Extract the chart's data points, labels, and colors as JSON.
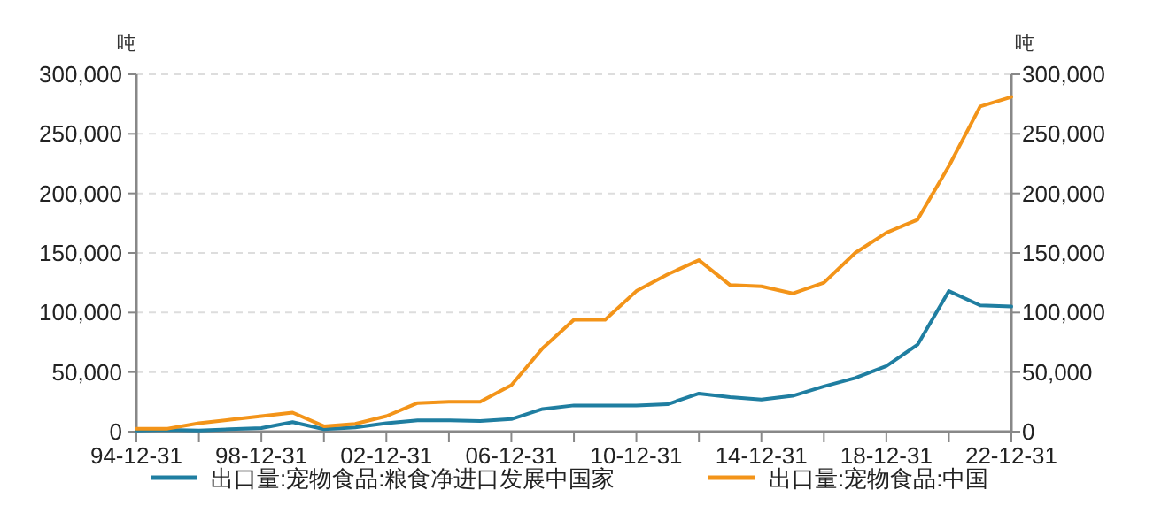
{
  "chart_data": {
    "type": "line",
    "ylabel": "吨",
    "y2label": "吨",
    "x": [
      "1994-12-31",
      "1995-12-31",
      "1996-12-31",
      "1997-12-31",
      "1998-12-31",
      "1999-12-31",
      "2000-12-31",
      "2001-12-31",
      "2002-12-31",
      "2003-12-31",
      "2004-12-31",
      "2005-12-31",
      "2006-12-31",
      "2007-12-31",
      "2008-12-31",
      "2009-12-31",
      "2010-12-31",
      "2011-12-31",
      "2012-12-31",
      "2013-12-31",
      "2014-12-31",
      "2015-12-31",
      "2016-12-31",
      "2017-12-31",
      "2018-12-31",
      "2019-12-31",
      "2020-12-31",
      "2021-12-31",
      "2022-12-31"
    ],
    "series": [
      {
        "name": "出口量:宠物食品:粮食净进口发展中国家",
        "color": "#1f7ea1",
        "values": [
          1000,
          1500,
          1000,
          2000,
          3000,
          8000,
          2000,
          3500,
          7000,
          9500,
          9500,
          9000,
          10500,
          19000,
          22000,
          22000,
          22000,
          23000,
          32000,
          29000,
          27000,
          30000,
          38000,
          45000,
          55000,
          73000,
          118000,
          106000,
          105000
        ]
      },
      {
        "name": "出口量:宠物食品:中国",
        "color": "#f39419",
        "values": [
          2500,
          2500,
          7000,
          10000,
          13000,
          16000,
          4500,
          6500,
          13000,
          24000,
          25000,
          25000,
          39000,
          70000,
          94000,
          94000,
          118000,
          132000,
          144000,
          123000,
          122000,
          116000,
          125000,
          150000,
          167000,
          178000,
          223000,
          273000,
          281000
        ]
      }
    ],
    "xlim": [
      "1994-12-31",
      "2022-12-31"
    ],
    "xticks": [
      {
        "value": "1994-12-31",
        "label": "94-12-31"
      },
      {
        "value": "1996-12-31",
        "label": null
      },
      {
        "value": "1998-12-31",
        "label": "98-12-31"
      },
      {
        "value": "2000-12-31",
        "label": null
      },
      {
        "value": "2002-12-31",
        "label": "02-12-31"
      },
      {
        "value": "2004-12-31",
        "label": null
      },
      {
        "value": "2006-12-31",
        "label": "06-12-31"
      },
      {
        "value": "2008-12-31",
        "label": null
      },
      {
        "value": "2010-12-31",
        "label": "10-12-31"
      },
      {
        "value": "2012-12-31",
        "label": null
      },
      {
        "value": "2014-12-31",
        "label": "14-12-31"
      },
      {
        "value": "2016-12-31",
        "label": null
      },
      {
        "value": "2018-12-31",
        "label": "18-12-31"
      },
      {
        "value": "2020-12-31",
        "label": null
      },
      {
        "value": "2022-12-31",
        "label": "22-12-31"
      }
    ],
    "ylim": [
      0,
      300000
    ],
    "yticks": [
      {
        "value": 0,
        "label": "0"
      },
      {
        "value": 50000,
        "label": "50,000"
      },
      {
        "value": 100000,
        "label": "100,000"
      },
      {
        "value": 150000,
        "label": "150,000"
      },
      {
        "value": 200000,
        "label": "200,000"
      },
      {
        "value": 250000,
        "label": "250,000"
      },
      {
        "value": 300000,
        "label": "300,000"
      }
    ],
    "y2lim": [
      0,
      300000
    ],
    "y2ticks": [
      {
        "value": 0,
        "label": "0"
      },
      {
        "value": 50000,
        "label": "50,000"
      },
      {
        "value": 100000,
        "label": "100,000"
      },
      {
        "value": 150000,
        "label": "150,000"
      },
      {
        "value": 200000,
        "label": "200,000"
      },
      {
        "value": 250000,
        "label": "250,000"
      },
      {
        "value": 300000,
        "label": "300,000"
      }
    ],
    "grid": "y",
    "legend": "bottom",
    "marker": "none",
    "line_style": "solid"
  }
}
